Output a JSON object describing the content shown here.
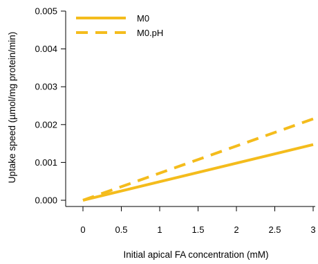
{
  "chart_data": {
    "type": "line",
    "xlabel": "Initial apical FA concentration (mM)",
    "ylabel": "Uptake speed (µmol/mg protein/min)",
    "xlim": [
      0,
      3
    ],
    "ylim": [
      0,
      0.005
    ],
    "xticks": [
      {
        "value": 0,
        "label": "0"
      },
      {
        "value": 0.5,
        "label": "0.5"
      },
      {
        "value": 1,
        "label": "1"
      },
      {
        "value": 1.5,
        "label": "1.5"
      },
      {
        "value": 2,
        "label": "2"
      },
      {
        "value": 2.5,
        "label": "2.5"
      },
      {
        "value": 3,
        "label": "3"
      }
    ],
    "yticks": [
      {
        "value": 0,
        "label": "0.000"
      },
      {
        "value": 0.001,
        "label": "0.001"
      },
      {
        "value": 0.002,
        "label": "0.002"
      },
      {
        "value": 0.003,
        "label": "0.003"
      },
      {
        "value": 0.004,
        "label": "0.004"
      },
      {
        "value": 0.005,
        "label": "0.005"
      }
    ],
    "grid": false,
    "legend": "top-left",
    "series": [
      {
        "name": "M0",
        "color": "#F4BC1C",
        "style": "solid",
        "x": [
          0,
          3
        ],
        "y": [
          0,
          0.00147
        ]
      },
      {
        "name": "M0.pH",
        "color": "#F4BC1C",
        "style": "dashed",
        "x": [
          0,
          3
        ],
        "y": [
          0,
          0.00215
        ]
      }
    ]
  }
}
